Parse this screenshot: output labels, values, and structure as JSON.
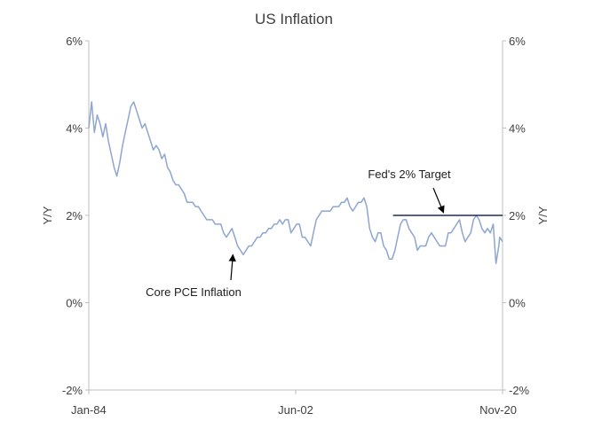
{
  "chart_data": {
    "type": "line",
    "title": "US Inflation",
    "xlabel": "",
    "ylabel": "Y/Y",
    "ylabel_right": "Y/Y",
    "x_tick_labels": [
      "Jan-84",
      "Jun-02",
      "Nov-20"
    ],
    "x_range": [
      "Jan-84",
      "Nov-20"
    ],
    "y_ticks": [
      -2,
      0,
      2,
      4,
      6
    ],
    "y_tick_labels": [
      "-2%",
      "0%",
      "2%",
      "4%",
      "6%"
    ],
    "ylim": [
      -2,
      6
    ],
    "grid": false,
    "colors": {
      "series": "#8ea5d0",
      "target": "#1f2d4f",
      "axis": "#bfbfbf",
      "arrow": "#000000"
    },
    "series": [
      {
        "name": "Core PCE Inflation",
        "points": [
          [
            "1984-01",
            4.0
          ],
          [
            "1984-04",
            4.6
          ],
          [
            "1984-07",
            3.9
          ],
          [
            "1984-10",
            4.3
          ],
          [
            "1985-01",
            4.1
          ],
          [
            "1985-04",
            3.8
          ],
          [
            "1985-07",
            4.1
          ],
          [
            "1985-10",
            3.7
          ],
          [
            "1986-01",
            3.4
          ],
          [
            "1986-04",
            3.1
          ],
          [
            "1986-07",
            2.9
          ],
          [
            "1986-10",
            3.2
          ],
          [
            "1987-01",
            3.6
          ],
          [
            "1987-04",
            3.9
          ],
          [
            "1987-07",
            4.2
          ],
          [
            "1987-10",
            4.5
          ],
          [
            "1988-01",
            4.6
          ],
          [
            "1988-04",
            4.4
          ],
          [
            "1988-07",
            4.2
          ],
          [
            "1988-10",
            4.0
          ],
          [
            "1989-01",
            4.1
          ],
          [
            "1989-04",
            3.9
          ],
          [
            "1989-07",
            3.7
          ],
          [
            "1989-10",
            3.5
          ],
          [
            "1990-01",
            3.6
          ],
          [
            "1990-04",
            3.5
          ],
          [
            "1990-07",
            3.3
          ],
          [
            "1990-10",
            3.4
          ],
          [
            "1991-01",
            3.1
          ],
          [
            "1991-04",
            3.0
          ],
          [
            "1991-07",
            2.8
          ],
          [
            "1991-10",
            2.7
          ],
          [
            "1992-01",
            2.7
          ],
          [
            "1992-04",
            2.6
          ],
          [
            "1992-07",
            2.5
          ],
          [
            "1992-10",
            2.3
          ],
          [
            "1993-01",
            2.3
          ],
          [
            "1993-04",
            2.3
          ],
          [
            "1993-07",
            2.2
          ],
          [
            "1993-10",
            2.2
          ],
          [
            "1994-01",
            2.1
          ],
          [
            "1994-04",
            2.0
          ],
          [
            "1994-07",
            1.9
          ],
          [
            "1994-10",
            1.9
          ],
          [
            "1995-01",
            1.9
          ],
          [
            "1995-04",
            1.8
          ],
          [
            "1995-07",
            1.8
          ],
          [
            "1995-10",
            1.8
          ],
          [
            "1996-01",
            1.6
          ],
          [
            "1996-04",
            1.5
          ],
          [
            "1996-07",
            1.6
          ],
          [
            "1996-10",
            1.7
          ],
          [
            "1997-01",
            1.5
          ],
          [
            "1997-04",
            1.3
          ],
          [
            "1997-07",
            1.2
          ],
          [
            "1997-10",
            1.1
          ],
          [
            "1998-01",
            1.2
          ],
          [
            "1998-04",
            1.3
          ],
          [
            "1998-07",
            1.3
          ],
          [
            "1998-10",
            1.4
          ],
          [
            "1999-01",
            1.5
          ],
          [
            "1999-04",
            1.5
          ],
          [
            "1999-07",
            1.6
          ],
          [
            "1999-10",
            1.6
          ],
          [
            "2000-01",
            1.7
          ],
          [
            "2000-04",
            1.7
          ],
          [
            "2000-07",
            1.8
          ],
          [
            "2000-10",
            1.8
          ],
          [
            "2001-01",
            1.9
          ],
          [
            "2001-04",
            1.8
          ],
          [
            "2001-07",
            1.9
          ],
          [
            "2001-10",
            1.9
          ],
          [
            "2002-01",
            1.6
          ],
          [
            "2002-04",
            1.7
          ],
          [
            "2002-07",
            1.8
          ],
          [
            "2002-10",
            1.8
          ],
          [
            "2003-01",
            1.5
          ],
          [
            "2003-04",
            1.5
          ],
          [
            "2003-07",
            1.4
          ],
          [
            "2003-10",
            1.3
          ],
          [
            "2004-01",
            1.6
          ],
          [
            "2004-04",
            1.9
          ],
          [
            "2004-07",
            2.0
          ],
          [
            "2004-10",
            2.1
          ],
          [
            "2005-01",
            2.1
          ],
          [
            "2005-04",
            2.1
          ],
          [
            "2005-07",
            2.1
          ],
          [
            "2005-10",
            2.2
          ],
          [
            "2006-01",
            2.2
          ],
          [
            "2006-04",
            2.2
          ],
          [
            "2006-07",
            2.3
          ],
          [
            "2006-10",
            2.3
          ],
          [
            "2007-01",
            2.4
          ],
          [
            "2007-04",
            2.2
          ],
          [
            "2007-07",
            2.1
          ],
          [
            "2007-10",
            2.2
          ],
          [
            "2008-01",
            2.3
          ],
          [
            "2008-04",
            2.3
          ],
          [
            "2008-07",
            2.4
          ],
          [
            "2008-10",
            2.2
          ],
          [
            "2009-01",
            1.7
          ],
          [
            "2009-04",
            1.5
          ],
          [
            "2009-07",
            1.4
          ],
          [
            "2009-10",
            1.6
          ],
          [
            "2010-01",
            1.6
          ],
          [
            "2010-04",
            1.3
          ],
          [
            "2010-07",
            1.2
          ],
          [
            "2010-10",
            1.0
          ],
          [
            "2011-01",
            1.0
          ],
          [
            "2011-04",
            1.2
          ],
          [
            "2011-07",
            1.5
          ],
          [
            "2011-10",
            1.8
          ],
          [
            "2012-01",
            1.9
          ],
          [
            "2012-04",
            1.9
          ],
          [
            "2012-07",
            1.7
          ],
          [
            "2012-10",
            1.6
          ],
          [
            "2013-01",
            1.5
          ],
          [
            "2013-04",
            1.2
          ],
          [
            "2013-07",
            1.3
          ],
          [
            "2013-10",
            1.3
          ],
          [
            "2014-01",
            1.3
          ],
          [
            "2014-04",
            1.5
          ],
          [
            "2014-07",
            1.6
          ],
          [
            "2014-10",
            1.5
          ],
          [
            "2015-01",
            1.4
          ],
          [
            "2015-04",
            1.3
          ],
          [
            "2015-07",
            1.3
          ],
          [
            "2015-10",
            1.3
          ],
          [
            "2016-01",
            1.6
          ],
          [
            "2016-04",
            1.6
          ],
          [
            "2016-07",
            1.7
          ],
          [
            "2016-10",
            1.8
          ],
          [
            "2017-01",
            1.9
          ],
          [
            "2017-04",
            1.6
          ],
          [
            "2017-07",
            1.4
          ],
          [
            "2017-10",
            1.5
          ],
          [
            "2018-01",
            1.6
          ],
          [
            "2018-04",
            1.9
          ],
          [
            "2018-07",
            2.0
          ],
          [
            "2018-10",
            1.9
          ],
          [
            "2019-01",
            1.7
          ],
          [
            "2019-04",
            1.6
          ],
          [
            "2019-07",
            1.7
          ],
          [
            "2019-10",
            1.6
          ],
          [
            "2020-01",
            1.8
          ],
          [
            "2020-04",
            0.9
          ],
          [
            "2020-07",
            1.3
          ],
          [
            "2020-08",
            1.5
          ],
          [
            "2020-11",
            1.4
          ]
        ]
      }
    ],
    "target_line": {
      "value": 2.0,
      "from": "2011-02",
      "to": "2020-11"
    },
    "annotations": [
      {
        "text": "Core PCE Inflation",
        "points_to": [
          "1996-11",
          1.1
        ]
      },
      {
        "text": "Fed's 2% Target",
        "points_to": [
          "2015-08",
          2.0
        ]
      }
    ]
  }
}
